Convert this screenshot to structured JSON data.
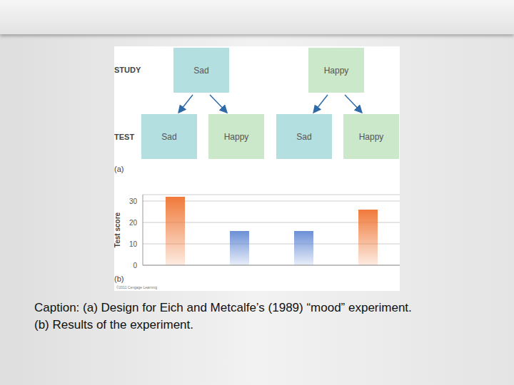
{
  "diagram": {
    "row_labels": [
      "STUDY",
      "TEST"
    ],
    "study": [
      {
        "label": "Sad",
        "color": "#b4dfe0"
      },
      {
        "label": "Happy",
        "color": "#cbe8cb"
      }
    ],
    "test": [
      {
        "label": "Sad",
        "color": "#b4dfe0"
      },
      {
        "label": "Happy",
        "color": "#cbe8cb"
      },
      {
        "label": "Sad",
        "color": "#b4dfe0"
      },
      {
        "label": "Happy",
        "color": "#cbe8cb"
      }
    ],
    "panel_label": "(a)"
  },
  "chart_data": {
    "type": "bar",
    "categories": [
      null,
      null,
      null,
      null
    ],
    "values": [
      32,
      16,
      16,
      26
    ],
    "colors": [
      "#f07a3a",
      "#6b8fd6",
      "#6b8fd6",
      "#f07a3a"
    ],
    "y_label": "Test score",
    "ylim": [
      0,
      33
    ],
    "yticks": [
      0,
      10,
      20,
      30
    ],
    "grid": true,
    "annotations": [
      "(b)",
      "©2011 Cengage Learning"
    ]
  },
  "caption": [
    "Caption: (a) Design for Eich and Metcalfe’s (1989) “mood” experiment.",
    "(b) Results of the experiment."
  ]
}
